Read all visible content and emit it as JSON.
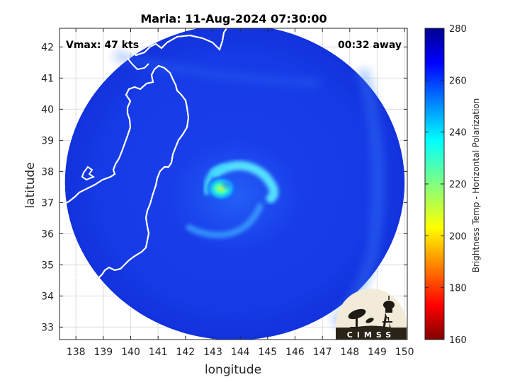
{
  "chart_data": {
    "type": "heatmap",
    "title": "Maria: 11-Aug-2024 07:30:00",
    "xlabel": "longitude",
    "ylabel": "latitude",
    "xlim": [
      137.4,
      150.1
    ],
    "ylim": [
      32.6,
      42.6
    ],
    "x_ticks": [
      138,
      139,
      140,
      141,
      142,
      143,
      144,
      145,
      146,
      147,
      148,
      149,
      150
    ],
    "y_ticks": [
      33,
      34,
      35,
      36,
      37,
      38,
      39,
      40,
      41,
      42
    ],
    "grid": true,
    "annotations": {
      "vmax": "Vmax: 47 kts",
      "time_away": "00:32 away"
    },
    "colorbar": {
      "label": "Brightness Temp - Horizontal Polarization",
      "range": [
        160,
        280
      ],
      "ticks": [
        160,
        180,
        200,
        220,
        240,
        260,
        280
      ],
      "colormap": "jet"
    },
    "swath": {
      "center_lon": 143.8,
      "center_lat": 37.65,
      "radius_lon": 6.2
    },
    "storm_center": {
      "lon": 143.3,
      "lat": 37.45,
      "min_temp": 215
    },
    "background_temp": 267,
    "logo_text": "CIMSS",
    "colors": {
      "coastline": "#ffffff",
      "grid": "#dcdcdc",
      "axis": "#262626"
    }
  }
}
